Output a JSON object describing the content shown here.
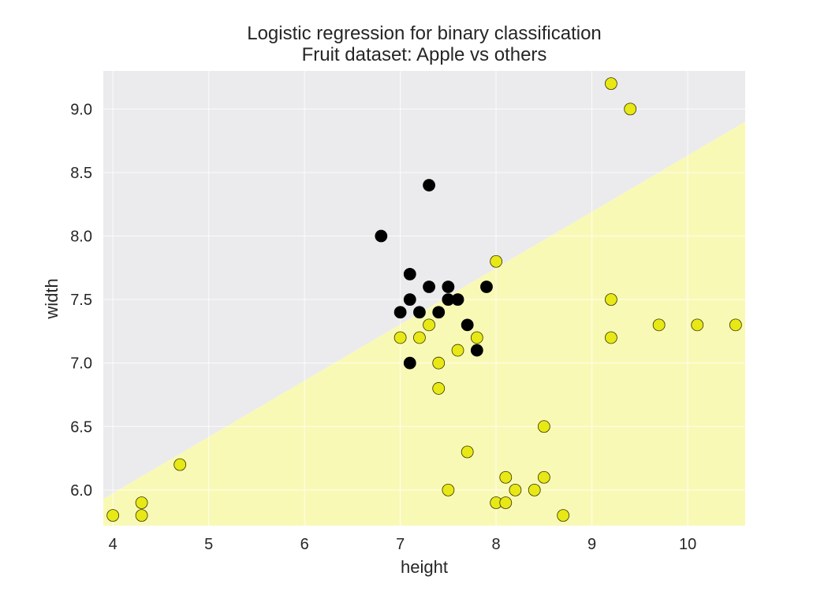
{
  "chart_data": {
    "type": "scatter",
    "title": "Logistic regression for binary classification",
    "subtitle": "Fruit dataset: Apple vs others",
    "xlabel": "height",
    "ylabel": "width",
    "xlim": [
      3.9,
      10.6
    ],
    "ylim": [
      5.72,
      9.3
    ],
    "xticks": [
      4,
      5,
      6,
      7,
      8,
      9,
      10
    ],
    "xtick_labels": [
      "4",
      "5",
      "6",
      "7",
      "8",
      "9",
      "10"
    ],
    "yticks": [
      6.0,
      6.5,
      7.0,
      7.5,
      8.0,
      8.5,
      9.0
    ],
    "ytick_labels": [
      "6.0",
      "6.5",
      "7.0",
      "7.5",
      "8.0",
      "8.5",
      "9.0"
    ],
    "grid": true,
    "decision_boundary": {
      "line_points": [
        [
          3.9,
          5.93
        ],
        [
          10.6,
          8.9
        ]
      ],
      "region_above_color": "#ebebed",
      "region_below_color": "#f9f9b6"
    },
    "series": [
      {
        "color": "#000000",
        "edge_color": "#000000",
        "points": [
          [
            6.8,
            8.0
          ],
          [
            7.3,
            8.4
          ],
          [
            7.1,
            7.7
          ],
          [
            7.3,
            7.6
          ],
          [
            7.5,
            7.6
          ],
          [
            7.9,
            7.6
          ],
          [
            7.1,
            7.5
          ],
          [
            7.5,
            7.5
          ],
          [
            7.6,
            7.5
          ],
          [
            7.0,
            7.4
          ],
          [
            7.2,
            7.4
          ],
          [
            7.4,
            7.4
          ],
          [
            7.7,
            7.3
          ],
          [
            7.8,
            7.1
          ],
          [
            7.1,
            7.0
          ]
        ]
      },
      {
        "color": "#e8e816",
        "edge_color": "#333300",
        "points": [
          [
            9.2,
            9.2
          ],
          [
            9.4,
            9.0
          ],
          [
            8.0,
            7.8
          ],
          [
            9.2,
            7.5
          ],
          [
            9.7,
            7.3
          ],
          [
            10.1,
            7.3
          ],
          [
            10.5,
            7.3
          ],
          [
            7.3,
            7.3
          ],
          [
            7.0,
            7.2
          ],
          [
            7.2,
            7.2
          ],
          [
            7.8,
            7.2
          ],
          [
            9.2,
            7.2
          ],
          [
            7.6,
            7.1
          ],
          [
            7.4,
            7.0
          ],
          [
            7.4,
            6.8
          ],
          [
            8.5,
            6.5
          ],
          [
            7.7,
            6.3
          ],
          [
            4.7,
            6.2
          ],
          [
            8.1,
            6.1
          ],
          [
            8.5,
            6.1
          ],
          [
            7.5,
            6.0
          ],
          [
            8.2,
            6.0
          ],
          [
            8.4,
            6.0
          ],
          [
            4.3,
            5.9
          ],
          [
            8.0,
            5.9
          ],
          [
            8.1,
            5.9
          ],
          [
            4.0,
            5.8
          ],
          [
            4.3,
            5.8
          ],
          [
            8.7,
            5.8
          ]
        ]
      }
    ]
  }
}
